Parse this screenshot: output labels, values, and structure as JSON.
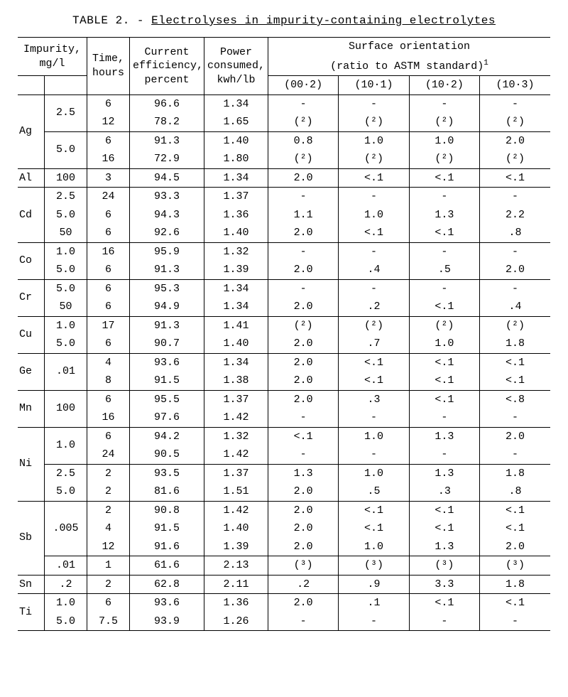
{
  "caption_prefix": "TABLE 2. - ",
  "caption_main": "Electrolyses in impurity-containing electrolytes",
  "headers": {
    "impurity": "Impurity,\nmg/l",
    "time": "Time,\nhours",
    "eff": "Current\nefficiency,\npercent",
    "power": "Power\nconsumed,\nkwh/lb",
    "surf_top": "Surface orientation",
    "surf_sub": "(ratio to ASTM standard)",
    "s1": "(00·2)",
    "s2": "(10·1)",
    "s3": "(10·2)",
    "s4": "(10·3)"
  },
  "rows": [
    {
      "el": "Ag",
      "el_rs": 4,
      "mgl": "2.5",
      "mgl_rs": 2,
      "time": "6",
      "eff": "96.6",
      "pow": "1.34",
      "s": [
        "-",
        "-",
        "-",
        "-"
      ],
      "top": "heavy"
    },
    {
      "time": "12",
      "eff": "78.2",
      "pow": "1.65",
      "s": [
        "(²)",
        "(²)",
        "(²)",
        "(²)"
      ],
      "bot": "thin"
    },
    {
      "mgl": "5.0",
      "mgl_rs": 2,
      "time": "6",
      "eff": "91.3",
      "pow": "1.40",
      "s": [
        "0.8",
        "1.0",
        "1.0",
        "2.0"
      ]
    },
    {
      "time": "16",
      "eff": "72.9",
      "pow": "1.80",
      "s": [
        "(²)",
        "(²)",
        "(²)",
        "(²)"
      ],
      "bot": "thin"
    },
    {
      "el": "Al",
      "el_rs": 1,
      "mgl": "100",
      "mgl_rs": 1,
      "time": "3",
      "eff": "94.5",
      "pow": "1.34",
      "s": [
        "2.0",
        "<.1",
        "<.1",
        "<.1"
      ],
      "bot": "thin"
    },
    {
      "el": "Cd",
      "el_rs": 3,
      "mgl": "2.5",
      "mgl_rs": 1,
      "time": "24",
      "eff": "93.3",
      "pow": "1.37",
      "s": [
        "-",
        "-",
        "-",
        "-"
      ]
    },
    {
      "mgl": "5.0",
      "mgl_rs": 1,
      "time": "6",
      "eff": "94.3",
      "pow": "1.36",
      "s": [
        "1.1",
        "1.0",
        "1.3",
        "2.2"
      ]
    },
    {
      "mgl": "50",
      "mgl_rs": 1,
      "time": "6",
      "eff": "92.6",
      "pow": "1.40",
      "s": [
        "2.0",
        "<.1",
        "<.1",
        ".8"
      ],
      "bot": "thin"
    },
    {
      "el": "Co",
      "el_rs": 2,
      "mgl": "1.0",
      "mgl_rs": 1,
      "time": "16",
      "eff": "95.9",
      "pow": "1.32",
      "s": [
        "-",
        "-",
        "-",
        "-"
      ]
    },
    {
      "mgl": "5.0",
      "mgl_rs": 1,
      "time": "6",
      "eff": "91.3",
      "pow": "1.39",
      "s": [
        "2.0",
        ".4",
        ".5",
        "2.0"
      ],
      "bot": "thin"
    },
    {
      "el": "Cr",
      "el_rs": 2,
      "mgl": "5.0",
      "mgl_rs": 1,
      "time": "6",
      "eff": "95.3",
      "pow": "1.34",
      "s": [
        "-",
        "-",
        "-",
        "-"
      ]
    },
    {
      "mgl": "50",
      "mgl_rs": 1,
      "time": "6",
      "eff": "94.9",
      "pow": "1.34",
      "s": [
        "2.0",
        ".2",
        "<.1",
        ".4"
      ],
      "bot": "thin"
    },
    {
      "el": "Cu",
      "el_rs": 2,
      "mgl": "1.0",
      "mgl_rs": 1,
      "time": "17",
      "eff": "91.3",
      "pow": "1.41",
      "s": [
        "(²)",
        "(²)",
        "(²)",
        "(²)"
      ]
    },
    {
      "mgl": "5.0",
      "mgl_rs": 1,
      "time": "6",
      "eff": "90.7",
      "pow": "1.40",
      "s": [
        "2.0",
        ".7",
        "1.0",
        "1.8"
      ],
      "bot": "thin"
    },
    {
      "el": "Ge",
      "el_rs": 2,
      "mgl": ".01",
      "mgl_rs": 2,
      "time": "4",
      "eff": "93.6",
      "pow": "1.34",
      "s": [
        "2.0",
        "<.1",
        "<.1",
        "<.1"
      ]
    },
    {
      "time": "8",
      "eff": "91.5",
      "pow": "1.38",
      "s": [
        "2.0",
        "<.1",
        "<.1",
        "<.1"
      ],
      "bot": "thin"
    },
    {
      "el": "Mn",
      "el_rs": 2,
      "mgl": "100",
      "mgl_rs": 2,
      "time": "6",
      "eff": "95.5",
      "pow": "1.37",
      "s": [
        "2.0",
        ".3",
        "<.1",
        "<.8"
      ]
    },
    {
      "time": "16",
      "eff": "97.6",
      "pow": "1.42",
      "s": [
        "-",
        "-",
        "-",
        "-"
      ],
      "bot": "thin"
    },
    {
      "el": "Ni",
      "el_rs": 4,
      "mgl": "1.0",
      "mgl_rs": 2,
      "time": "6",
      "eff": "94.2",
      "pow": "1.32",
      "s": [
        "<.1",
        "1.0",
        "1.3",
        "2.0"
      ]
    },
    {
      "time": "24",
      "eff": "90.5",
      "pow": "1.42",
      "s": [
        "-",
        "-",
        "-",
        "-"
      ],
      "bot": "thin"
    },
    {
      "mgl": "2.5",
      "mgl_rs": 1,
      "time": "2",
      "eff": "93.5",
      "pow": "1.37",
      "s": [
        "1.3",
        "1.0",
        "1.3",
        "1.8"
      ]
    },
    {
      "mgl": "5.0",
      "mgl_rs": 1,
      "time": "2",
      "eff": "81.6",
      "pow": "1.51",
      "s": [
        "2.0",
        ".5",
        ".3",
        ".8"
      ],
      "bot": "thin"
    },
    {
      "el": "Sb",
      "el_rs": 4,
      "mgl": ".005",
      "mgl_rs": 3,
      "time": "2",
      "eff": "90.8",
      "pow": "1.42",
      "s": [
        "2.0",
        "<.1",
        "<.1",
        "<.1"
      ]
    },
    {
      "time": "4",
      "eff": "91.5",
      "pow": "1.40",
      "s": [
        "2.0",
        "<.1",
        "<.1",
        "<.1"
      ]
    },
    {
      "time": "12",
      "eff": "91.6",
      "pow": "1.39",
      "s": [
        "2.0",
        "1.0",
        "1.3",
        "2.0"
      ],
      "bot": "thin"
    },
    {
      "mgl": ".01",
      "mgl_rs": 1,
      "time": "1",
      "eff": "61.6",
      "pow": "2.13",
      "s": [
        "(³)",
        "(³)",
        "(³)",
        "(³)"
      ],
      "bot": "thin"
    },
    {
      "el": "Sn",
      "el_rs": 1,
      "mgl": ".2",
      "mgl_rs": 1,
      "time": "2",
      "eff": "62.8",
      "pow": "2.11",
      "s": [
        ".2",
        ".9",
        "3.3",
        "1.8"
      ],
      "bot": "thin"
    },
    {
      "el": "Ti",
      "el_rs": 2,
      "mgl": "1.0",
      "mgl_rs": 1,
      "time": "6",
      "eff": "93.6",
      "pow": "1.36",
      "s": [
        "2.0",
        ".1",
        "<.1",
        "<.1"
      ]
    },
    {
      "mgl": "5.0",
      "mgl_rs": 1,
      "time": "7.5",
      "eff": "93.9",
      "pow": "1.26",
      "s": [
        "-",
        "-",
        "-",
        "-"
      ],
      "bot": "heavy"
    }
  ]
}
